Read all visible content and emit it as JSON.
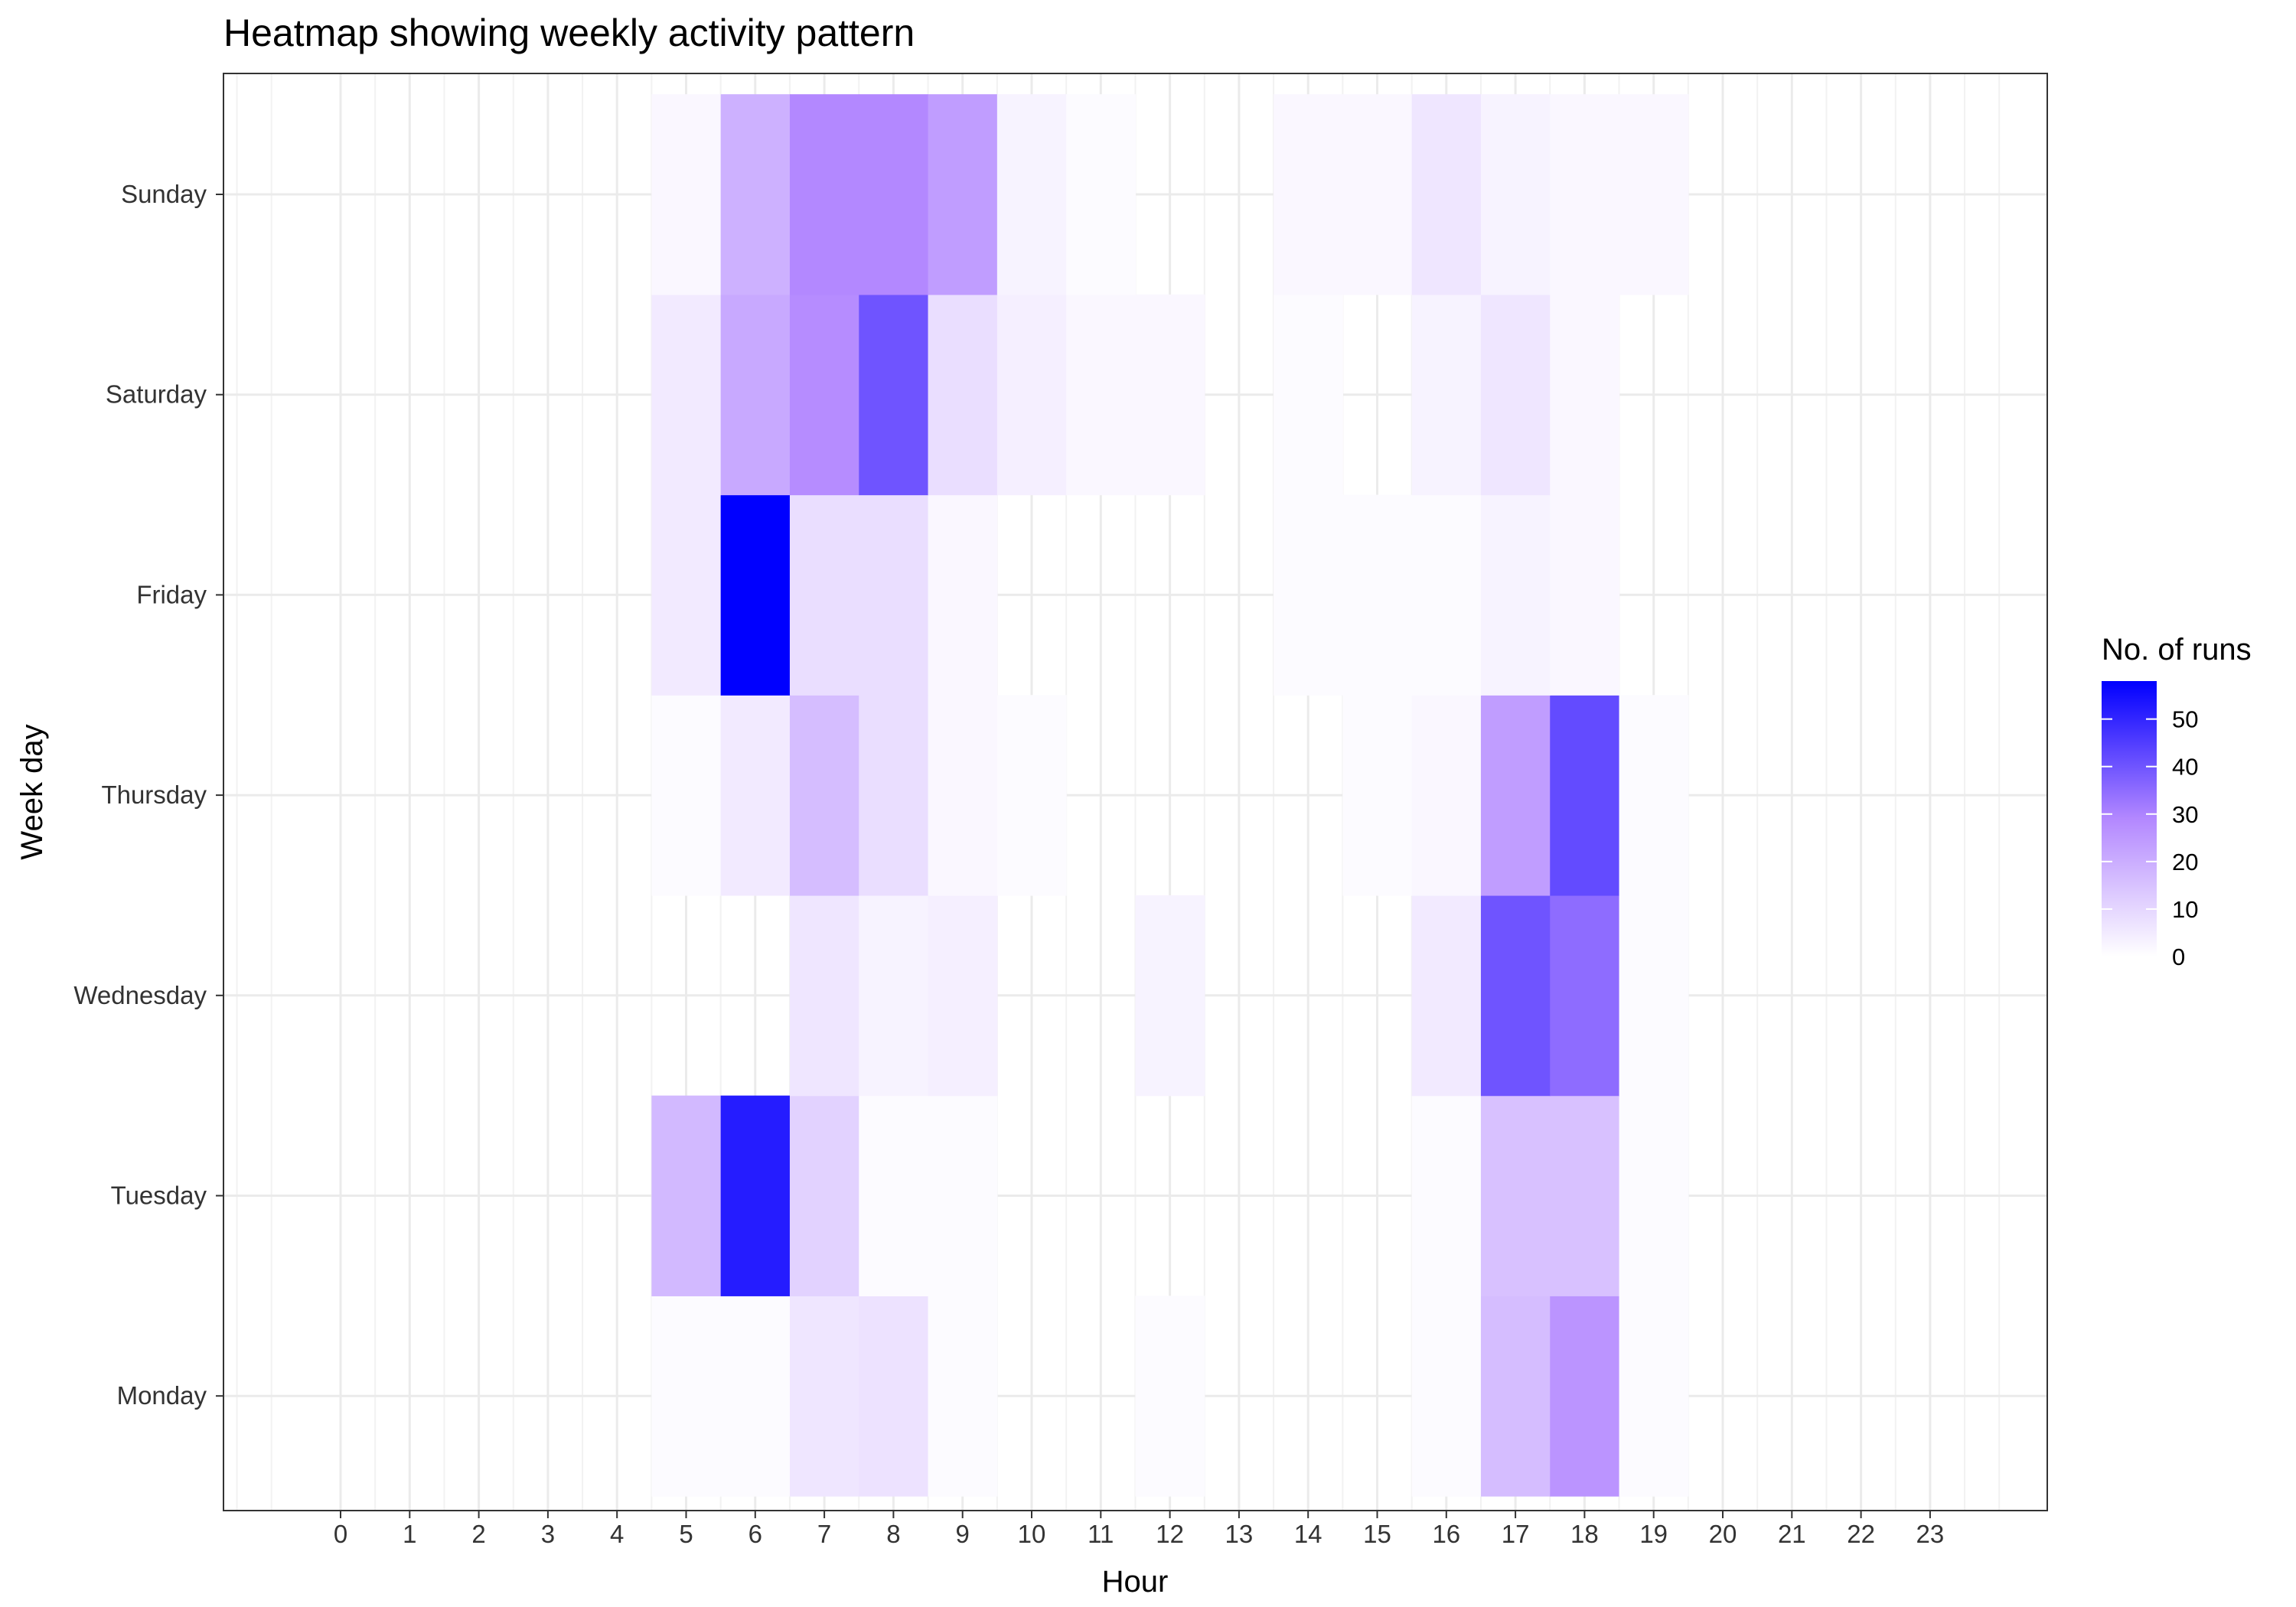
{
  "chart_data": {
    "type": "heatmap",
    "title": "Heatmap showing weekly activity pattern",
    "xlabel": "Hour",
    "ylabel": "Week day",
    "x": [
      0,
      1,
      2,
      3,
      4,
      5,
      6,
      7,
      8,
      9,
      10,
      11,
      12,
      13,
      14,
      15,
      16,
      17,
      18,
      19,
      20,
      21,
      22,
      23
    ],
    "y": [
      "Monday",
      "Tuesday",
      "Wednesday",
      "Thursday",
      "Friday",
      "Saturday",
      "Sunday"
    ],
    "values": [
      [
        0,
        0,
        0,
        0,
        0,
        1,
        1,
        6,
        7,
        1,
        0,
        0,
        1,
        0,
        0,
        0,
        1,
        16,
        26,
        1,
        0,
        0,
        0,
        0
      ],
      [
        0,
        0,
        0,
        0,
        0,
        17,
        52,
        11,
        1,
        1,
        0,
        0,
        0,
        0,
        0,
        0,
        1,
        15,
        15,
        1,
        0,
        0,
        0,
        0
      ],
      [
        0,
        0,
        0,
        0,
        0,
        0,
        0,
        6,
        3,
        4,
        0,
        0,
        3,
        0,
        0,
        0,
        5,
        40,
        35,
        1,
        0,
        0,
        0,
        0
      ],
      [
        0,
        0,
        0,
        0,
        0,
        1,
        5,
        16,
        8,
        2,
        1,
        0,
        0,
        0,
        0,
        1,
        2,
        24,
        42,
        1,
        0,
        0,
        0,
        0
      ],
      [
        0,
        0,
        0,
        0,
        0,
        5,
        58,
        8,
        8,
        2,
        0,
        0,
        0,
        0,
        1,
        1,
        1,
        3,
        2,
        0,
        0,
        0,
        0,
        0
      ],
      [
        0,
        0,
        0,
        0,
        0,
        5,
        21,
        28,
        40,
        8,
        4,
        2,
        2,
        0,
        1,
        0,
        3,
        6,
        2,
        0,
        0,
        0,
        0,
        0
      ],
      [
        0,
        0,
        0,
        0,
        0,
        2,
        19,
        29,
        29,
        24,
        3,
        1,
        0,
        0,
        2,
        2,
        6,
        3,
        2,
        2,
        0,
        0,
        0,
        0
      ]
    ],
    "colorscale": {
      "low": "#ffffff",
      "mid": "#b388ff",
      "high": "#0000ff",
      "max": 58
    },
    "legend": {
      "title": "No. of runs",
      "ticks": [
        0,
        10,
        20,
        30,
        40,
        50
      ],
      "position": "right"
    },
    "grid": true
  }
}
